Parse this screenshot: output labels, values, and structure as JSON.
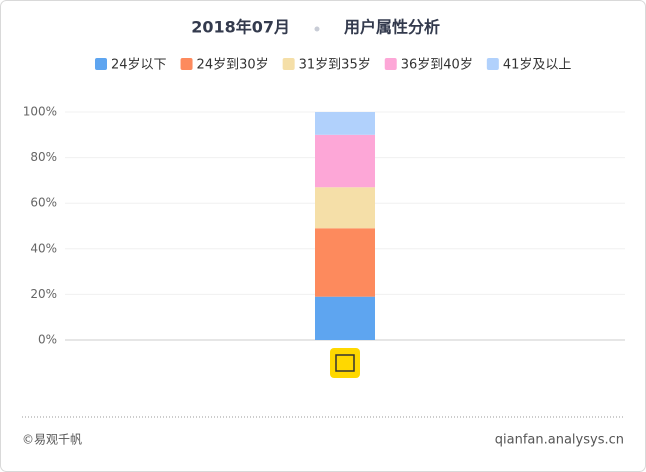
{
  "chart_data": {
    "type": "stacked_bar",
    "period": "2018年07月",
    "title": "用户属性分析",
    "categories": [
      null
    ],
    "series": [
      {
        "name": "24岁以下",
        "color": "#5ea5f0",
        "values": [
          19
        ]
      },
      {
        "name": "24岁到30岁",
        "color": "#fd8a5d",
        "values": [
          30
        ]
      },
      {
        "name": "31岁到35岁",
        "color": "#f5dfa8",
        "values": [
          18
        ]
      },
      {
        "name": "36岁到40岁",
        "color": "#fda7d7",
        "values": [
          23
        ]
      },
      {
        "name": "41岁及以上",
        "color": "#b1d1fc",
        "values": [
          10
        ]
      }
    ],
    "ylim": [
      0,
      100
    ],
    "yticks": [
      {
        "value": 0,
        "label": "0%"
      },
      {
        "value": 20,
        "label": "20%"
      },
      {
        "value": 40,
        "label": "40%"
      },
      {
        "value": 60,
        "label": "60%"
      },
      {
        "value": 80,
        "label": "80%"
      },
      {
        "value": 100,
        "label": "100%"
      }
    ],
    "grid": true,
    "legend": "top"
  },
  "footer": {
    "copyright": "©易观千帆",
    "site": "qianfan.analysys.cn"
  }
}
